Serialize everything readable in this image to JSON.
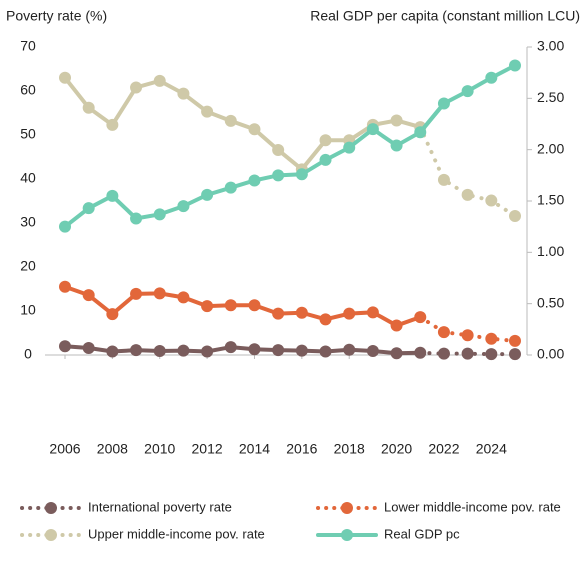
{
  "chart_data": {
    "type": "line",
    "y_label": "Poverty rate (%)",
    "y2_label": "Real GDP per capita (constant million LCU)",
    "x": [
      2006,
      2007,
      2008,
      2009,
      2010,
      2011,
      2012,
      2013,
      2014,
      2015,
      2016,
      2017,
      2018,
      2019,
      2020,
      2021,
      2022,
      2023,
      2024,
      2025
    ],
    "xlim": [
      2006,
      2025
    ],
    "xticks": [
      2006,
      2008,
      2010,
      2012,
      2014,
      2016,
      2018,
      2020,
      2022,
      2024
    ],
    "ylim": [
      0,
      70
    ],
    "yticks": [
      0,
      10,
      20,
      30,
      40,
      50,
      60,
      70
    ],
    "y2lim": [
      0,
      3
    ],
    "y2ticks": [
      {
        "value": 0,
        "label": "0.00"
      },
      {
        "value": 0.5,
        "label": "0.50"
      },
      {
        "value": 1,
        "label": "1.00"
      },
      {
        "value": 1.5,
        "label": "1.50"
      },
      {
        "value": 2,
        "label": "2.00"
      },
      {
        "value": 2.5,
        "label": "2.50"
      },
      {
        "value": 3,
        "label": "3.00"
      }
    ],
    "forecast_from": 2022,
    "series": [
      {
        "name": "International poverty rate",
        "color": "#7a5c5c",
        "line_style": "dotted",
        "values": [
          2.0,
          1.6,
          0.8,
          1.1,
          0.9,
          1.0,
          0.8,
          1.8,
          1.3,
          1.1,
          1.0,
          0.8,
          1.2,
          0.9,
          0.4,
          0.5,
          0.3,
          0.3,
          0.2,
          0.2
        ]
      },
      {
        "name": "Lower middle-income pov. rate",
        "color": "#e2673a",
        "line_style": "dotted",
        "values": [
          15.5,
          13.6,
          9.3,
          13.9,
          14.0,
          13.1,
          11.1,
          11.3,
          11.3,
          9.4,
          9.6,
          8.1,
          9.4,
          9.7,
          6.7,
          8.6,
          5.2,
          4.5,
          3.7,
          3.2
        ]
      },
      {
        "name": "Upper middle-income pov. rate",
        "color": "#cfc9a8",
        "line_style": "dotted",
        "values": [
          63.0,
          56.2,
          52.3,
          60.8,
          62.3,
          59.4,
          55.3,
          53.2,
          51.3,
          46.6,
          42.2,
          48.8,
          48.8,
          52.3,
          53.3,
          51.8,
          39.8,
          36.4,
          35.1,
          31.6
        ]
      },
      {
        "name": "Real GDP pc",
        "color": "#6fcdb2",
        "line_style": "solid",
        "axis": "y2",
        "values": [
          1.25,
          1.43,
          1.55,
          1.33,
          1.37,
          1.45,
          1.56,
          1.63,
          1.7,
          1.75,
          1.76,
          1.9,
          2.02,
          2.2,
          2.04,
          2.17,
          2.45,
          2.57,
          2.7,
          2.82
        ]
      }
    ]
  }
}
